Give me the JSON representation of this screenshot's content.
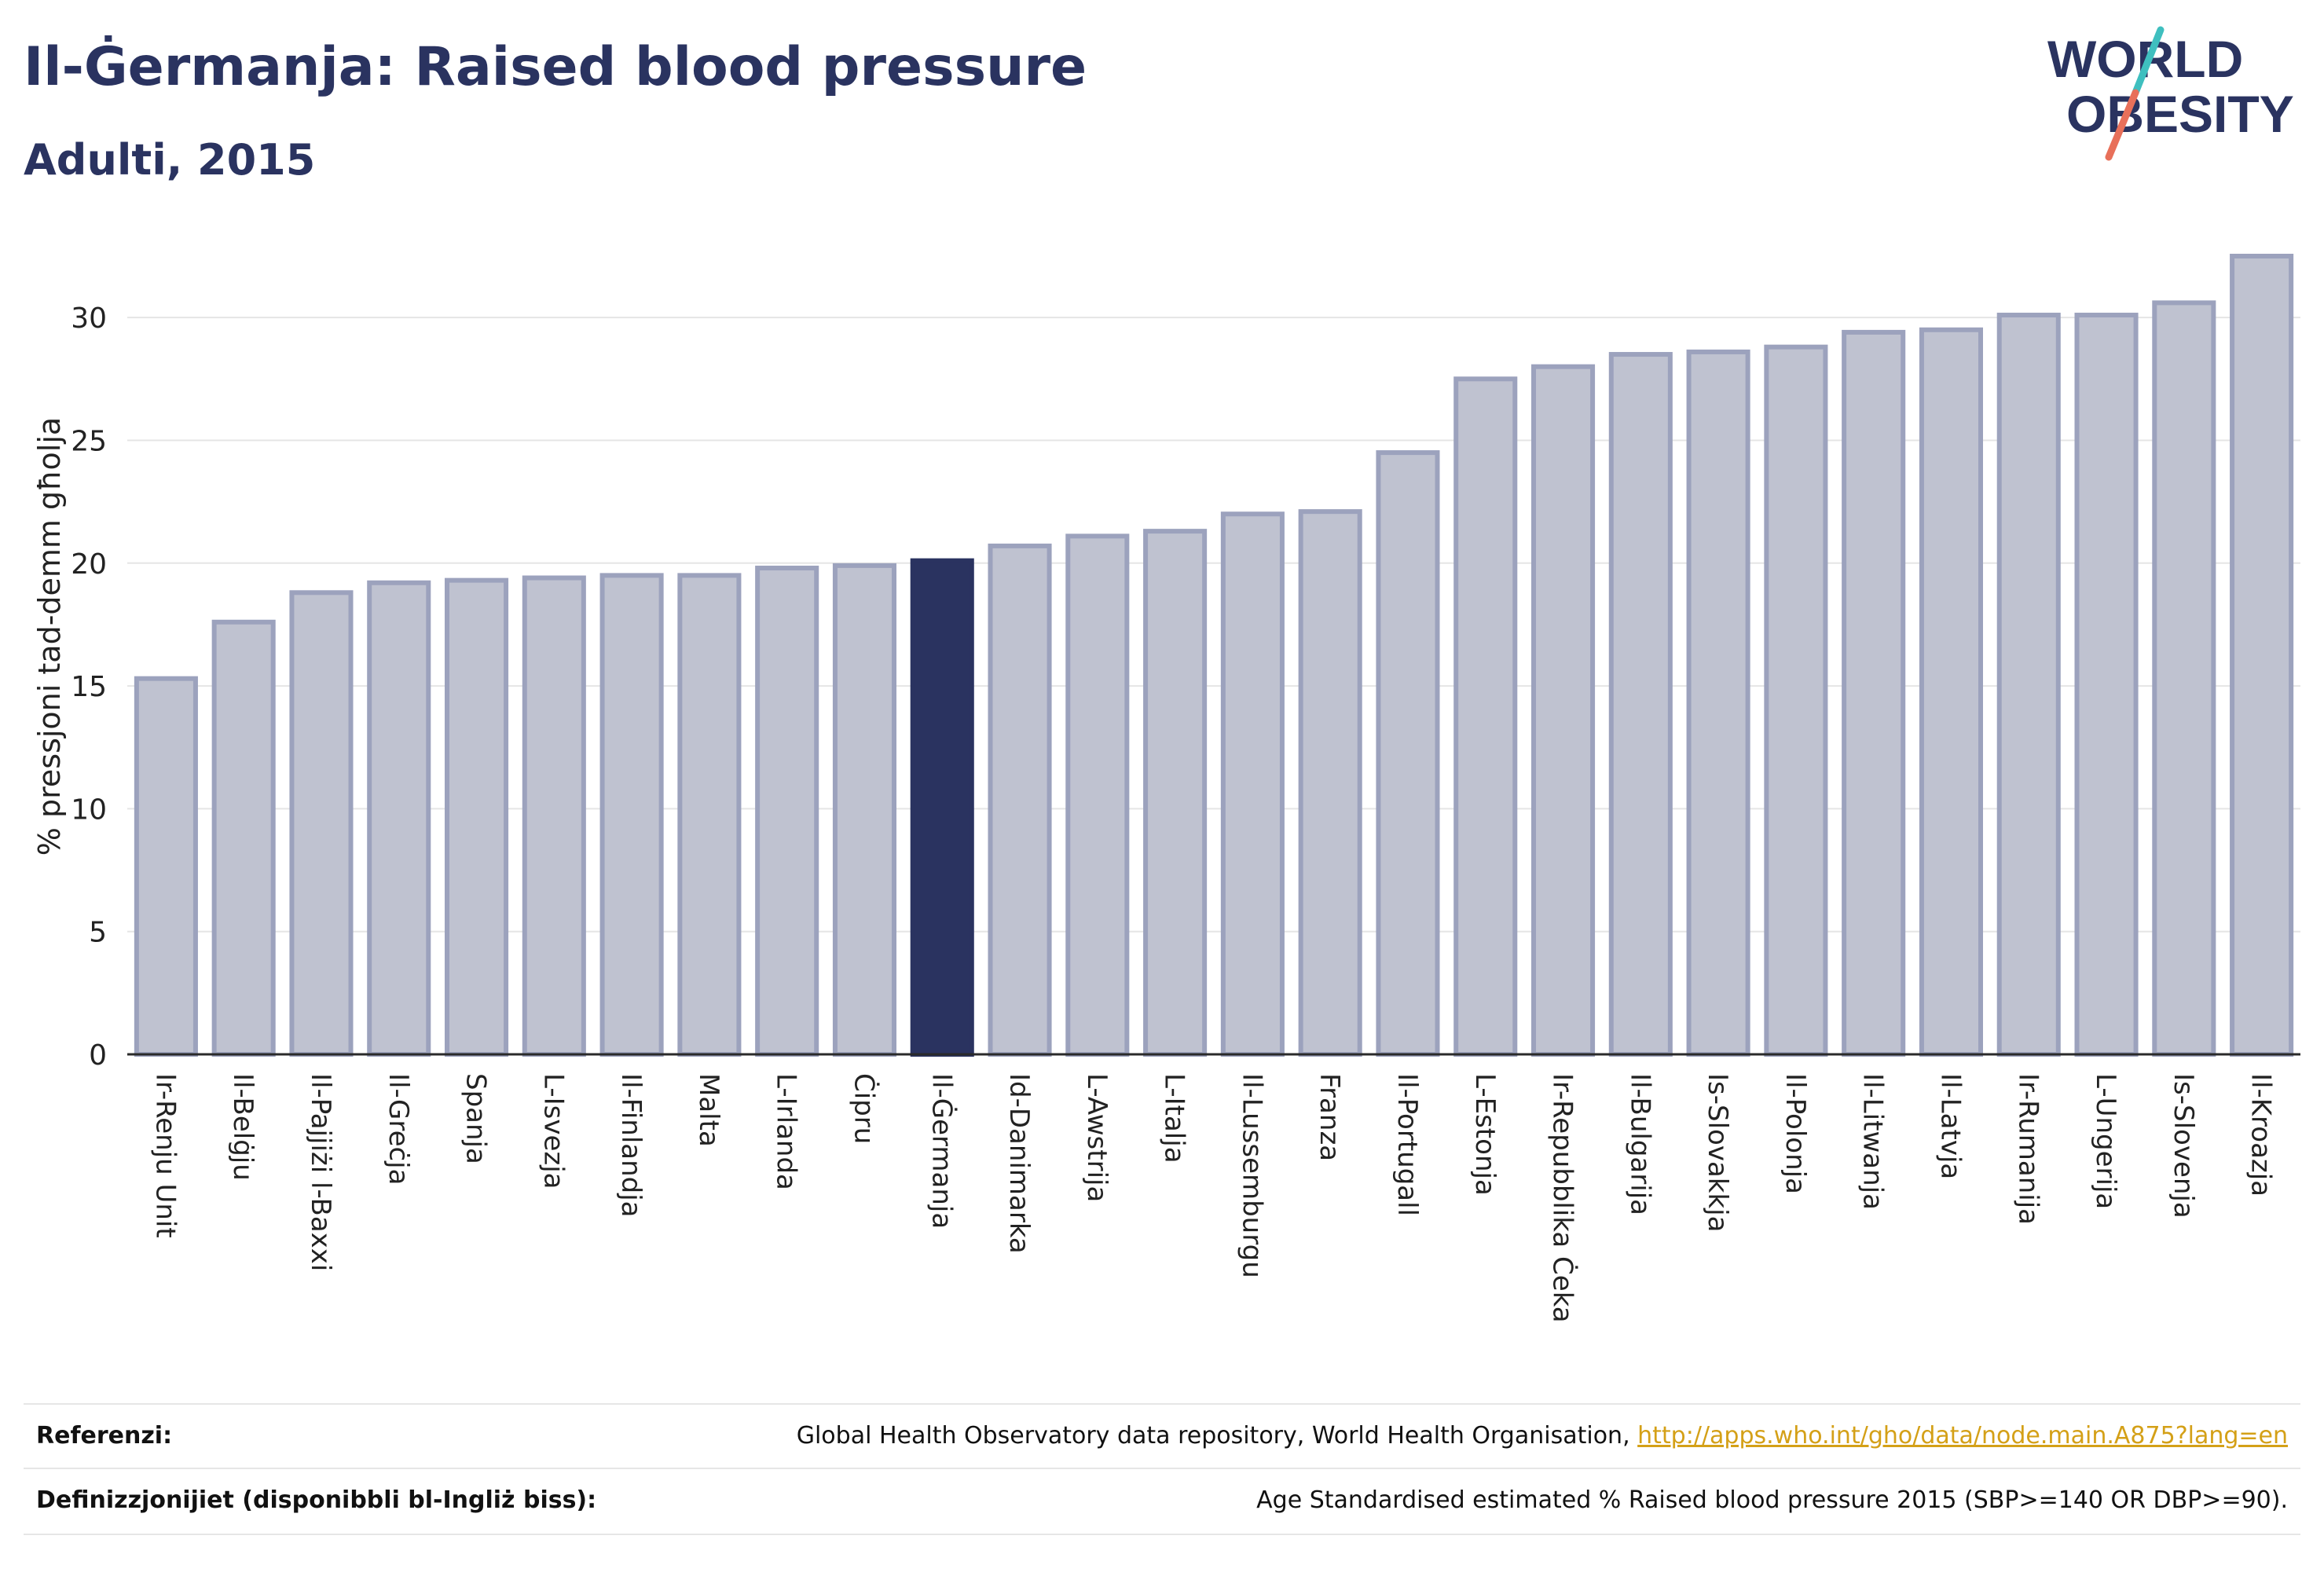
{
  "header": {
    "title": "Il-Ġermanja: Raised blood pressure",
    "subtitle": "Adulti, 2015"
  },
  "logo": {
    "line1": "WORLD",
    "line2": "OBESITY"
  },
  "chart_data": {
    "type": "bar",
    "title": "Il-Ġermanja: Raised blood pressure",
    "subtitle": "Adulti, 2015",
    "ylabel": "% pressjoni tad-demm għolja",
    "xlabel": "",
    "ylim": [
      0,
      32.5
    ],
    "yticks": [
      0,
      5,
      10,
      15,
      20,
      25,
      30
    ],
    "grid": true,
    "highlight": "Il-Ġermanja",
    "colors": {
      "bar": "#bfc2d0",
      "bar_edge": "#9ca2bd",
      "highlight": "#2a3360",
      "grid": "#e5e5e5"
    },
    "categories": [
      "Ir-Renju Unit",
      "Il-Belġju",
      "Il-Pajjiżi l-Baxxi",
      "Il-Greċja",
      "Spanja",
      "L-Isvezja",
      "Il-Finlandja",
      "Malta",
      "L-Irlanda",
      "Ċipru",
      "Il-Ġermanja",
      "Id-Danimarka",
      "L-Awstrija",
      "L-Italja",
      "Il-Lussemburgu",
      "Franza",
      "Il-Portugall",
      "L-Estonja",
      "Ir-Repubblika Ċeka",
      "Il-Bulgarija",
      "Is-Slovakkja",
      "Il-Polonja",
      "Il-Litwanja",
      "Il-Latvja",
      "Ir-Rumanija",
      "L-Ungerija",
      "Is-Slovenja",
      "Il-Kroazja"
    ],
    "values": [
      15.3,
      17.6,
      18.8,
      19.2,
      19.3,
      19.4,
      19.5,
      19.5,
      19.8,
      19.9,
      20.1,
      20.7,
      21.1,
      21.3,
      22.0,
      22.1,
      24.5,
      27.5,
      28.0,
      28.5,
      28.6,
      28.8,
      29.4,
      29.5,
      30.1,
      30.1,
      30.6,
      32.5
    ]
  },
  "footer": {
    "ref_label": "Referenzi:",
    "ref_text": "Global Health Observatory data repository, World Health Organisation, ",
    "ref_link": "http://apps.who.int/gho/data/node.main.A875?lang=en",
    "def_label": "Definizzjonijiet (disponibbli bl-Ingliż biss):",
    "def_text": "Age Standardised estimated % Raised blood pressure 2015 (SBP>=140 OR DBP>=90)."
  }
}
